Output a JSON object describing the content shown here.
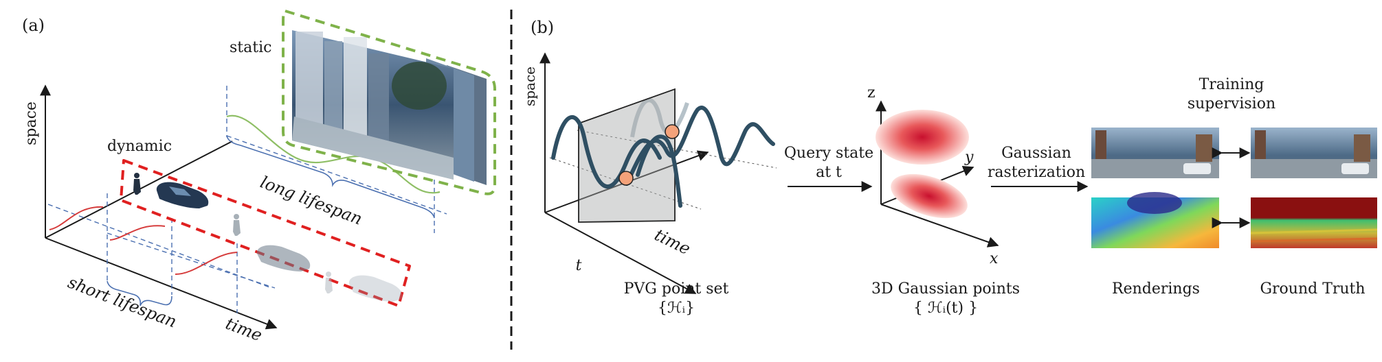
{
  "panel_a": {
    "tag": "(a)",
    "axis_space": "space",
    "axis_time": "time",
    "label_static": "static",
    "label_dynamic": "dynamic",
    "label_long": "long lifespan",
    "label_short": "short lifespan"
  },
  "panel_b": {
    "tag": "(b)",
    "axis_space": "space",
    "axis_time": "time",
    "tick_t": "t",
    "pvg_title": "PVG point set",
    "pvg_formula": "{ℋᵢ}",
    "query_line1": "Query state",
    "query_line2": "at t",
    "axis_z": "z",
    "axis_y": "y",
    "axis_x": "x",
    "gauss_title": "3D Gaussian points",
    "gauss_formula": "{ ℋᵢ(t) }",
    "raster_line1": "Gaussian",
    "raster_line2": "rasterization",
    "train_line1": "Training",
    "train_line2": "supervision",
    "renderings": "Renderings",
    "ground_truth": "Ground Truth"
  },
  "colors": {
    "static_box": "#7fb24a",
    "dynamic_box": "#e02020",
    "long_curve": "#8fbf66",
    "short_curve": "#d63c3c",
    "guide_blue": "#4a6fb0",
    "pvg_curve": "#2f4f63",
    "point_orange": "#f4a27a",
    "gauss_red": "#d7263d"
  }
}
